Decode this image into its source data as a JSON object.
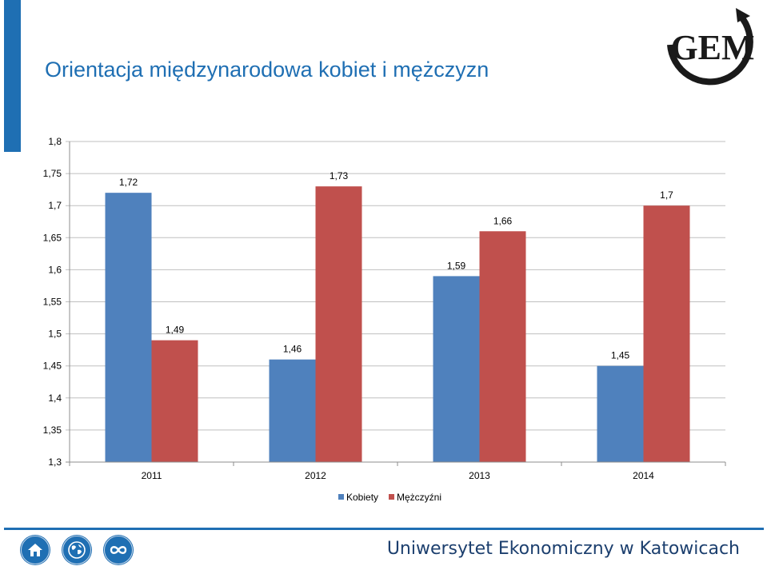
{
  "header": {
    "title": "Orientacja międzynarodowa kobiet i mężczyzn",
    "logo_text": "GEM"
  },
  "colors": {
    "accent": "#1f6fb3",
    "kobiety": "#4f81bd",
    "mezczyzni": "#c0504d"
  },
  "chart_data": {
    "type": "bar",
    "categories": [
      "2011",
      "2012",
      "2013",
      "2014"
    ],
    "series": [
      {
        "name": "Kobiety",
        "values": [
          1.72,
          1.46,
          1.59,
          1.45
        ],
        "labels": [
          "1,72",
          "1,46",
          "1,59",
          "1,45"
        ]
      },
      {
        "name": "Mężczyźni",
        "values": [
          1.49,
          1.73,
          1.66,
          1.7
        ],
        "labels": [
          "1,49",
          "1,73",
          "1,66",
          "1,7"
        ]
      }
    ],
    "ylim": [
      1.3,
      1.8
    ],
    "yticks": [
      1.8,
      1.75,
      1.7,
      1.65,
      1.6,
      1.55,
      1.5,
      1.45,
      1.4,
      1.35,
      1.3
    ],
    "ytick_labels": [
      "1,8",
      "1,75",
      "1,7",
      "1,65",
      "1,6",
      "1,55",
      "1,5",
      "1,45",
      "1,4",
      "1,35",
      "1,3"
    ],
    "grid": true,
    "legend": "bottom"
  },
  "footer": {
    "icons": [
      "home-icon",
      "globe-icon",
      "infinity-icon"
    ],
    "university": "Uniwersytet Ekonomiczny w Katowicach"
  }
}
